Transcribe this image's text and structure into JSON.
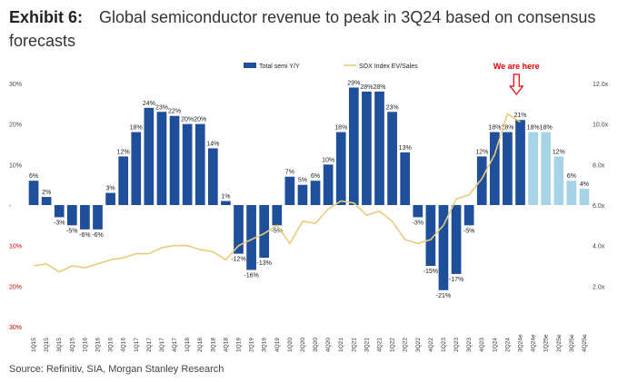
{
  "header": {
    "exhibit_label": "Exhibit 6:",
    "title_text": "Global semiconductor revenue to peak in 3Q24 based on consensus forecasts"
  },
  "footer": {
    "source": "Source: Refinitiv, SIA, Morgan Stanley Research"
  },
  "chart_data": {
    "type": "bar",
    "categories": [
      "1Q15",
      "2Q15",
      "3Q15",
      "4Q15",
      "1Q16",
      "2Q16",
      "3Q16",
      "4Q16",
      "1Q17",
      "2Q17",
      "3Q17",
      "4Q17",
      "1Q18",
      "2Q18",
      "3Q18",
      "4Q18",
      "1Q19",
      "2Q19",
      "3Q19",
      "4Q19",
      "1Q20",
      "2Q20",
      "3Q20",
      "4Q20",
      "1Q21",
      "2Q21",
      "3Q21",
      "4Q21",
      "1Q22",
      "2Q22",
      "3Q22",
      "4Q22",
      "1Q23",
      "2Q23",
      "3Q23",
      "4Q23",
      "1Q24",
      "2Q24",
      "3Q24e",
      "4Q24e",
      "1Q25e",
      "2Q25e",
      "3Q25e",
      "4Q25e"
    ],
    "x_tick_labels": [
      "1Q15",
      "2Q15",
      "3Q15",
      "4Q15",
      "1Q16",
      "2Q16",
      "3Q16",
      "4Q16",
      "1Q17",
      "2Q17",
      "3Q17",
      "4Q17",
      "1Q18",
      "2Q18",
      "3Q18",
      "4Q18",
      "1Q19",
      "2Q19",
      "3Q19",
      "4Q19",
      "1Q20",
      "2Q20",
      "3Q20",
      "4Q20",
      "1Q21",
      "2Q21",
      "3Q21",
      "4Q21",
      "1Q22",
      "2Q22",
      "3Q22",
      "4Q22",
      "1Q23",
      "2Q23",
      "3Q23",
      "4Q23",
      "1Q24",
      "2Q24",
      "3Q24e",
      "4Q24e",
      "1Q25e",
      "2Q25e",
      "3Q25e",
      "4Q25e"
    ],
    "series": [
      {
        "name": "Total semi Y/Y",
        "axis": "left",
        "color": "#1f4e9b",
        "forecast_color": "#a6d4e6",
        "forecast_start_index": 39,
        "values": [
          6,
          2,
          -3,
          -5,
          -6,
          -6,
          3,
          12,
          18,
          24,
          23,
          22,
          20,
          20,
          14,
          1,
          -12,
          -16,
          -13,
          -5,
          7,
          5,
          6,
          10,
          18,
          29,
          28,
          28,
          23,
          13,
          -3,
          -15,
          -21,
          -17,
          -5,
          12,
          18,
          18,
          21,
          18,
          18,
          12,
          6,
          4
        ],
        "data_labels": [
          "6%",
          "2%",
          "-3%",
          "-5%",
          "-6%",
          "-6%",
          "3%",
          "12%",
          "18%",
          "24%",
          "23%",
          "22%",
          "20%",
          "20%",
          "14%",
          "1%",
          "-12%",
          "-16%",
          "-13%",
          "-5%",
          "7%",
          "5%",
          "6%",
          "10%",
          "18%",
          "29%",
          "28%",
          "28%",
          "23%",
          "13%",
          "-3%",
          "-15%",
          "-21%",
          "-17%",
          "-5%",
          "12%",
          "18%",
          "18%",
          "21%",
          "18%",
          "18%",
          "12%",
          "6%",
          "4%"
        ]
      },
      {
        "name": "SOX Index EV/Sales",
        "axis": "right",
        "color": "#e8cc7a",
        "type": "line",
        "values": [
          3.0,
          3.1,
          2.7,
          3.0,
          2.9,
          3.1,
          3.3,
          3.4,
          3.6,
          3.6,
          3.9,
          4.0,
          4.0,
          3.8,
          3.7,
          3.3,
          4.0,
          4.3,
          4.6,
          5.0,
          4.1,
          5.2,
          5.1,
          5.8,
          6.2,
          6.1,
          5.5,
          5.7,
          5.2,
          4.3,
          4.1,
          4.3,
          5.0,
          6.3,
          6.5,
          7.3,
          8.5,
          10.5,
          10.1,
          null,
          null,
          null,
          null,
          null
        ]
      }
    ],
    "y_left": {
      "min": -30,
      "max": 30,
      "ticks": [
        30,
        20,
        10,
        0,
        -10,
        -20,
        -30
      ],
      "tick_labels": [
        "30%",
        "20%",
        "10%",
        "-",
        "10%",
        "20%",
        "30%"
      ]
    },
    "y_right": {
      "min": 0,
      "max": 12,
      "ticks": [
        12,
        10,
        8,
        6,
        4,
        2
      ],
      "tick_labels": [
        "12.0x",
        "10.0x",
        "8.0x",
        "6.0x",
        "4.0x",
        "2.0x"
      ]
    },
    "legend": {
      "placement": "top",
      "items": [
        "Total semi Y/Y",
        "SOX Index EV/Sales"
      ]
    },
    "annotations": [
      {
        "text": "We are here",
        "category": "3Q24e",
        "color": "#e00000"
      }
    ],
    "grid": false
  }
}
